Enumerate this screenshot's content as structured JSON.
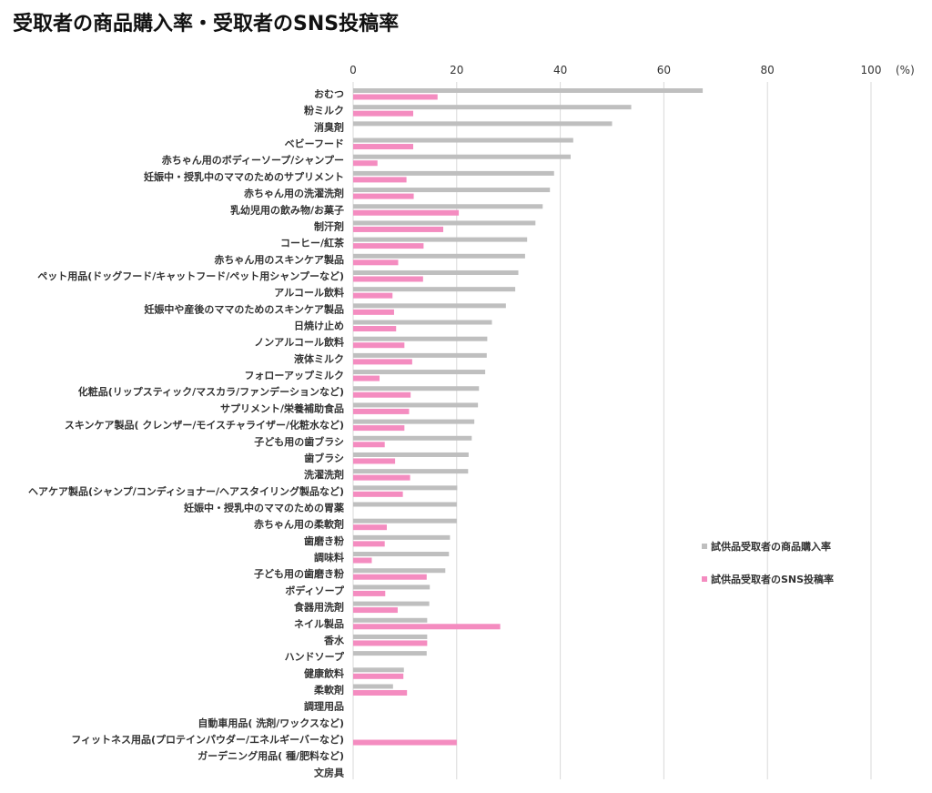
{
  "chart_data": {
    "type": "bar",
    "orientation": "horizontal",
    "title": "受取者の商品購入率・受取者のSNS投稿率",
    "xlim": [
      0,
      100
    ],
    "xticks": [
      0,
      20,
      40,
      60,
      80,
      100
    ],
    "unit_label": "(%)",
    "grid": true,
    "legend_position": "right",
    "categories": [
      "おむつ",
      "粉ミルク",
      "消臭剤",
      "ベビーフード",
      "赤ちゃん用のボディーソープ/シャンプー",
      "妊娠中・授乳中のママのためのサプリメント",
      "赤ちゃん用の洗濯洗剤",
      "乳幼児用の飲み物/お菓子",
      "制汗剤",
      "コーヒー/紅茶",
      "赤ちゃん用のスキンケア製品",
      "ペット用品(ドッグフード/キャットフード/ペット用シャンプーなど)",
      "アルコール飲料",
      "妊娠中や産後のママのためのスキンケア製品",
      "日焼け止め",
      "ノンアルコール飲料",
      "液体ミルク",
      "フォローアップミルク",
      "化粧品(リップスティック/マスカラ/ファンデーションなど)",
      "サプリメント/栄養補助食品",
      "スキンケア製品( クレンザー/モイスチャライザー/化粧水など)",
      "子ども用の歯ブラシ",
      "歯ブラシ",
      "洗濯洗剤",
      "ヘアケア製品(シャンプ/コンディショナー/ヘアスタイリング製品など)",
      "妊娠中・授乳中のママのための胃薬",
      "赤ちゃん用の柔軟剤",
      "歯磨き粉",
      "調味料",
      "子ども用の歯磨き粉",
      "ボディソープ",
      "食器用洗剤",
      "ネイル製品",
      "香水",
      "ハンドソープ",
      "健康飲料",
      "柔軟剤",
      "調理用品",
      "自動車用品( 洗剤/ワックスなど)",
      "フィットネス用品(プロテインパウダー/エネルギーバーなど)",
      "ガーデニング用品( 種/肥料など)",
      "文房具"
    ],
    "series": [
      {
        "name": "試供品受取者の商品購入率",
        "color": "#bfbfbf",
        "values": [
          67.5,
          53.7,
          50.0,
          42.5,
          42.0,
          38.8,
          38.0,
          36.6,
          35.2,
          33.6,
          33.2,
          31.9,
          31.3,
          29.5,
          26.8,
          25.9,
          25.8,
          25.5,
          24.3,
          24.1,
          23.4,
          22.9,
          22.3,
          22.2,
          20.1,
          20.0,
          20.0,
          18.7,
          18.5,
          17.8,
          14.8,
          14.7,
          14.3,
          14.3,
          14.2,
          9.8,
          7.7,
          0,
          0,
          0,
          0,
          0
        ]
      },
      {
        "name": "試供品受取者のSNS投稿率",
        "color": "#f48cc0",
        "values": [
          16.3,
          11.6,
          0,
          11.6,
          4.7,
          10.3,
          11.7,
          20.4,
          17.4,
          13.6,
          8.7,
          13.5,
          7.6,
          7.9,
          8.3,
          9.9,
          11.4,
          5.1,
          11.1,
          10.8,
          9.9,
          6.1,
          8.1,
          11.0,
          9.6,
          0,
          6.5,
          6.1,
          3.6,
          14.2,
          6.2,
          8.6,
          28.4,
          14.3,
          0,
          9.7,
          10.4,
          0,
          0,
          20.0,
          0,
          0
        ]
      }
    ]
  }
}
